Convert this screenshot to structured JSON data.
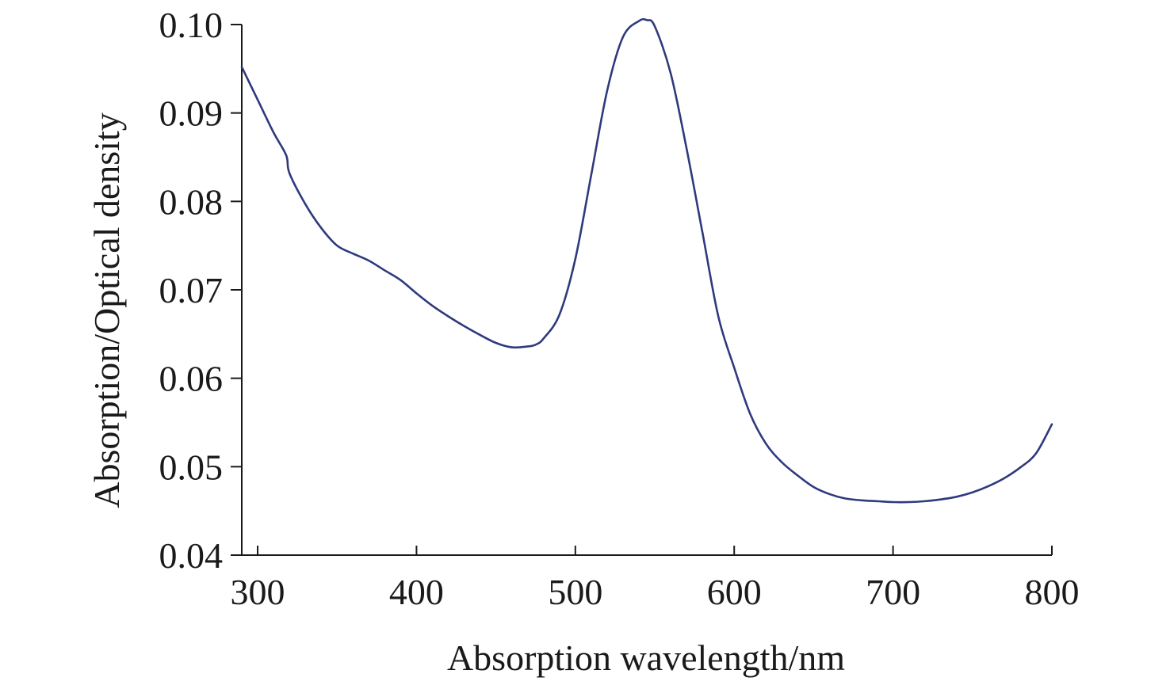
{
  "chart_data": {
    "type": "line",
    "title": "",
    "xlabel": "Absorption wavelength/nm",
    "ylabel": "Absorption/Optical density",
    "xlim": [
      290,
      800
    ],
    "ylim": [
      0.04,
      0.1
    ],
    "x_ticks": [
      300,
      400,
      500,
      600,
      700,
      800
    ],
    "x_tick_labels": [
      "300",
      "400",
      "500",
      "600",
      "700",
      "800"
    ],
    "y_ticks": [
      0.04,
      0.05,
      0.06,
      0.07,
      0.08,
      0.09,
      0.1
    ],
    "y_tick_labels": [
      "0.04",
      "0.05",
      "0.06",
      "0.07",
      "0.08",
      "0.09",
      "0.10"
    ],
    "grid": false,
    "legend": "none",
    "series": [
      {
        "color": "#2f3a7d",
        "x": [
          290,
          300,
          310,
          318,
          320,
          330,
          340,
          350,
          360,
          370,
          380,
          390,
          400,
          410,
          420,
          430,
          440,
          450,
          460,
          470,
          475,
          480,
          490,
          500,
          510,
          520,
          530,
          540,
          545,
          550,
          560,
          570,
          580,
          590,
          600,
          610,
          620,
          630,
          640,
          650,
          660,
          670,
          680,
          690,
          700,
          710,
          720,
          730,
          740,
          750,
          760,
          770,
          780,
          790,
          800
        ],
        "y": [
          0.0952,
          0.0915,
          0.0878,
          0.0852,
          0.0832,
          0.0797,
          0.077,
          0.075,
          0.0741,
          0.0733,
          0.0722,
          0.0711,
          0.0696,
          0.0682,
          0.067,
          0.0659,
          0.0649,
          0.064,
          0.0635,
          0.0636,
          0.0638,
          0.0645,
          0.0672,
          0.0735,
          0.083,
          0.0925,
          0.0986,
          0.1004,
          0.1005,
          0.0998,
          0.0945,
          0.086,
          0.0765,
          0.067,
          0.0612,
          0.056,
          0.0526,
          0.0505,
          0.049,
          0.0477,
          0.0469,
          0.0464,
          0.0462,
          0.0461,
          0.046,
          0.046,
          0.0461,
          0.0463,
          0.0466,
          0.0471,
          0.0478,
          0.0487,
          0.0499,
          0.0515,
          0.0548
        ]
      }
    ]
  }
}
